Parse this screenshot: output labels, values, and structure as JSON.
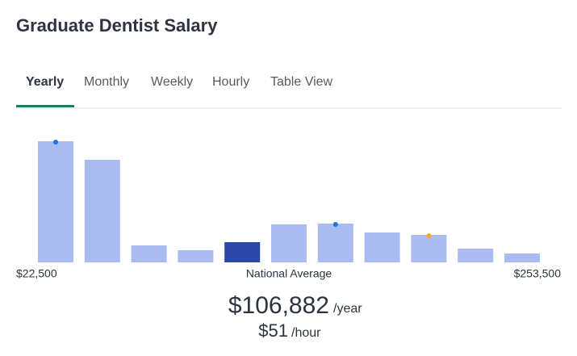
{
  "header": {
    "title": "Graduate Dentist Salary"
  },
  "tabs": [
    "Yearly",
    "Monthly",
    "Weekly",
    "Hourly",
    "Table View"
  ],
  "chart_data": {
    "type": "bar",
    "values": [
      150,
      127,
      21,
      15,
      25,
      47,
      48,
      37,
      34,
      17,
      11
    ],
    "colors": [
      "#aabbf2",
      "#aabbf2",
      "#aabbf2",
      "#aabbf2",
      "#2948a6",
      "#aabbf2",
      "#aabbf2",
      "#aabbf2",
      "#aabbf2",
      "#aabbf2",
      "#aabbf2"
    ],
    "ylim": [
      0,
      160
    ],
    "x_labels": {
      "min": "$22,500",
      "center": "National Average",
      "max": "$253,500"
    }
  },
  "salary": {
    "yearly": "$106,882",
    "yearly_unit": "/year",
    "hourly": "$51",
    "hourly_unit": "/hour"
  }
}
